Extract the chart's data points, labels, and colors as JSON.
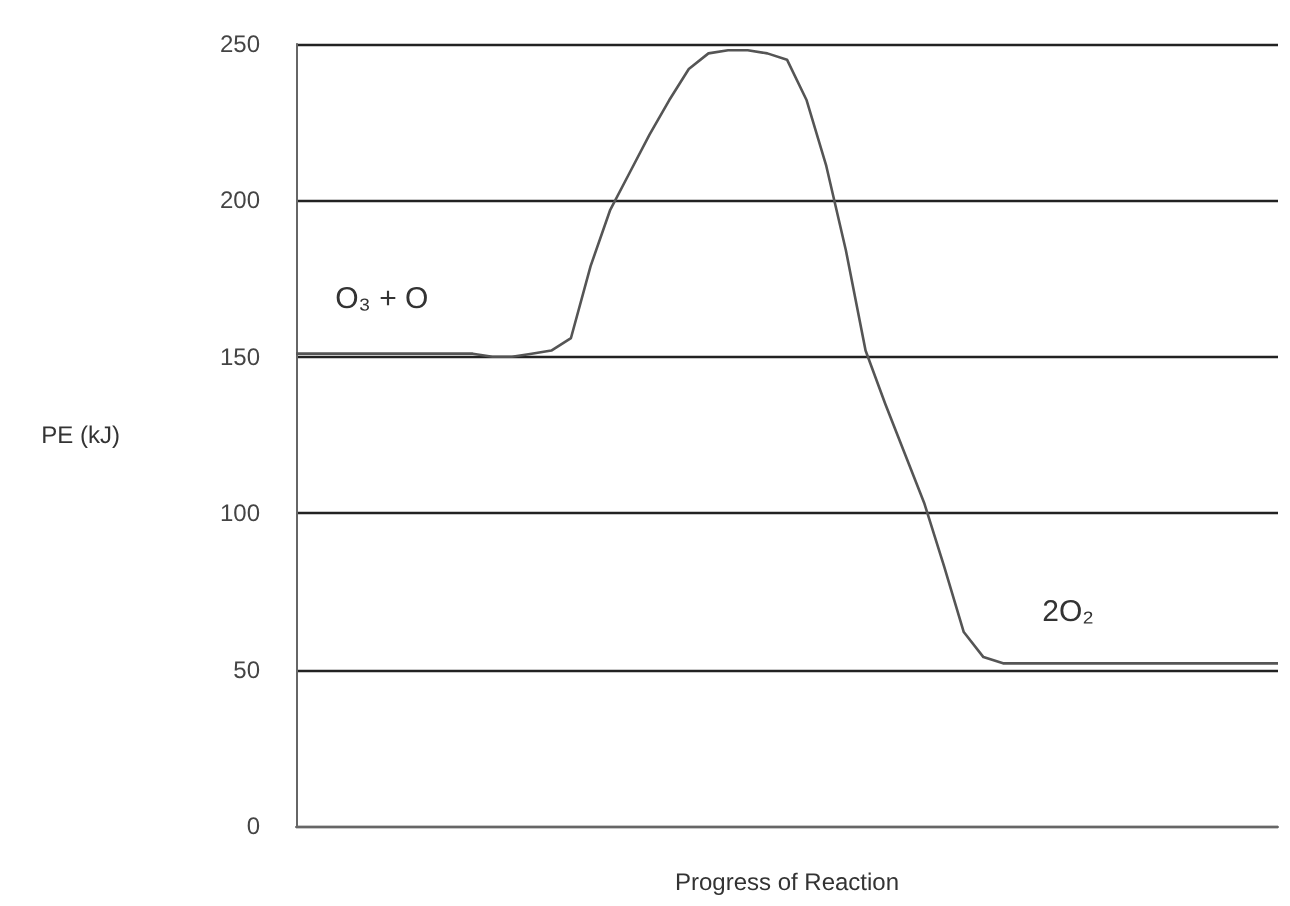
{
  "chart_data": {
    "type": "line",
    "xlabel": "Progress of Reaction",
    "ylabel": "PE (kJ)",
    "categories": [
      null,
      null,
      null,
      null,
      null,
      null,
      null,
      null,
      null,
      null,
      null,
      null,
      null,
      null,
      null,
      null,
      null,
      null,
      null,
      null,
      null,
      null,
      null,
      null,
      null,
      null,
      null,
      null,
      null,
      null,
      null,
      null,
      null,
      null,
      null,
      null,
      null,
      null,
      null,
      null,
      null,
      null,
      null,
      null,
      null,
      null,
      null,
      null,
      null,
      null,
      null
    ],
    "series": [
      {
        "color": "#555555",
        "values": [
          151,
          151,
          151,
          151,
          151,
          151,
          151,
          151,
          151,
          151,
          150,
          150,
          151,
          152,
          156,
          179,
          197,
          209,
          221,
          232,
          242,
          247,
          248,
          248,
          247,
          245,
          232,
          211,
          184,
          152,
          135,
          119,
          103,
          83,
          62,
          54,
          52,
          52,
          52,
          52,
          52,
          52,
          52,
          52,
          52,
          52,
          52,
          52,
          52,
          52,
          52
        ]
      }
    ],
    "ylim": [
      0,
      250
    ],
    "yticks": [
      0,
      50,
      100,
      150,
      200,
      250
    ],
    "grid": "y",
    "marker": "none",
    "line_style": "solid",
    "annotations": [
      "O₃ + O",
      "2O₂"
    ]
  }
}
